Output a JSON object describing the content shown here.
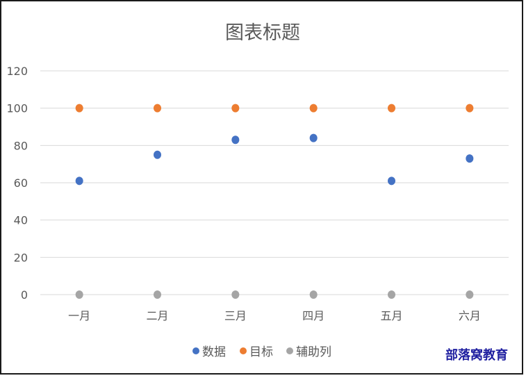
{
  "chart_data": {
    "type": "scatter",
    "title": "图表标题",
    "categories": [
      "一月",
      "二月",
      "三月",
      "四月",
      "五月",
      "六月"
    ],
    "ylim": [
      0,
      120
    ],
    "yticks": [
      0,
      20,
      40,
      60,
      80,
      100,
      120
    ],
    "grid": true,
    "legend_position": "bottom",
    "series": [
      {
        "name": "数据",
        "color": "#4472c4",
        "values": [
          61,
          75,
          83,
          84,
          61,
          73
        ]
      },
      {
        "name": "目标",
        "color": "#ed7d31",
        "values": [
          100,
          100,
          100,
          100,
          100,
          100
        ]
      },
      {
        "name": "辅助列",
        "color": "#a5a5a5",
        "values": [
          0,
          0,
          0,
          0,
          0,
          0
        ]
      }
    ]
  },
  "watermark": "部落窝教育"
}
